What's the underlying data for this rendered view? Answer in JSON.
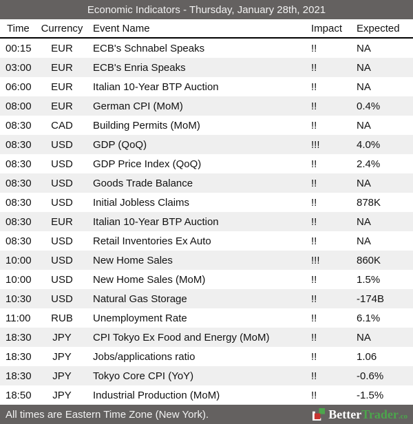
{
  "title_bar": {
    "title": "Economic Indicators - Thursday, January 28th, 2021"
  },
  "table": {
    "columns": [
      {
        "key": "time",
        "label": "Time"
      },
      {
        "key": "currency",
        "label": "Currency"
      },
      {
        "key": "event",
        "label": "Event Name"
      },
      {
        "key": "impact",
        "label": "Impact"
      },
      {
        "key": "expected",
        "label": "Expected"
      }
    ],
    "rows": [
      {
        "time": "00:15",
        "currency": "EUR",
        "event": "ECB's Schnabel Speaks",
        "impact": "!!",
        "expected": "NA"
      },
      {
        "time": "03:00",
        "currency": "EUR",
        "event": "ECB's Enria Speaks",
        "impact": "!!",
        "expected": "NA"
      },
      {
        "time": "06:00",
        "currency": "EUR",
        "event": "Italian 10-Year BTP Auction",
        "impact": "!!",
        "expected": "NA"
      },
      {
        "time": "08:00",
        "currency": "EUR",
        "event": "German CPI (MoM)",
        "impact": "!!",
        "expected": "0.4%"
      },
      {
        "time": "08:30",
        "currency": "CAD",
        "event": "Building Permits (MoM)",
        "impact": "!!",
        "expected": "NA"
      },
      {
        "time": "08:30",
        "currency": "USD",
        "event": "GDP (QoQ)",
        "impact": "!!!",
        "expected": "4.0%"
      },
      {
        "time": "08:30",
        "currency": "USD",
        "event": "GDP Price Index (QoQ)",
        "impact": "!!",
        "expected": "2.4%"
      },
      {
        "time": "08:30",
        "currency": "USD",
        "event": "Goods Trade Balance",
        "impact": "!!",
        "expected": "NA"
      },
      {
        "time": "08:30",
        "currency": "USD",
        "event": "Initial Jobless Claims",
        "impact": "!!",
        "expected": "878K"
      },
      {
        "time": "08:30",
        "currency": "EUR",
        "event": "Italian 10-Year BTP Auction",
        "impact": "!!",
        "expected": "NA"
      },
      {
        "time": "08:30",
        "currency": "USD",
        "event": "Retail Inventories Ex Auto",
        "impact": "!!",
        "expected": "NA"
      },
      {
        "time": "10:00",
        "currency": "USD",
        "event": "New Home Sales",
        "impact": "!!!",
        "expected": "860K"
      },
      {
        "time": "10:00",
        "currency": "USD",
        "event": "New Home Sales (MoM)",
        "impact": "!!",
        "expected": "1.5%"
      },
      {
        "time": "10:30",
        "currency": "USD",
        "event": "Natural Gas Storage",
        "impact": "!!",
        "expected": "-174B"
      },
      {
        "time": "11:00",
        "currency": "RUB",
        "event": "Unemployment Rate",
        "impact": "!!",
        "expected": "6.1%"
      },
      {
        "time": "18:30",
        "currency": "JPY",
        "event": "CPI Tokyo Ex Food and Energy (MoM)",
        "impact": "!!",
        "expected": "NA"
      },
      {
        "time": "18:30",
        "currency": "JPY",
        "event": "Jobs/applications ratio",
        "impact": "!!",
        "expected": "1.06"
      },
      {
        "time": "18:30",
        "currency": "JPY",
        "event": "Tokyo Core CPI (YoY)",
        "impact": "!!",
        "expected": "-0.6%"
      },
      {
        "time": "18:50",
        "currency": "JPY",
        "event": "Industrial Production (MoM)",
        "impact": "!!",
        "expected": "-1.5%"
      }
    ]
  },
  "footer": {
    "note": "All times are Eastern Time Zone (New York).",
    "brand": {
      "name_left": "Better",
      "name_right": "Trader",
      "tld": ".co"
    }
  },
  "colors": {
    "bar_bg": "#646160",
    "bar_text": "#f2f2f2",
    "row_alt_bg": "#efefef",
    "header_border": "#000000",
    "brand_green": "#4ca64c",
    "brand_red": "#c63430",
    "brand_white": "#ffffff"
  }
}
